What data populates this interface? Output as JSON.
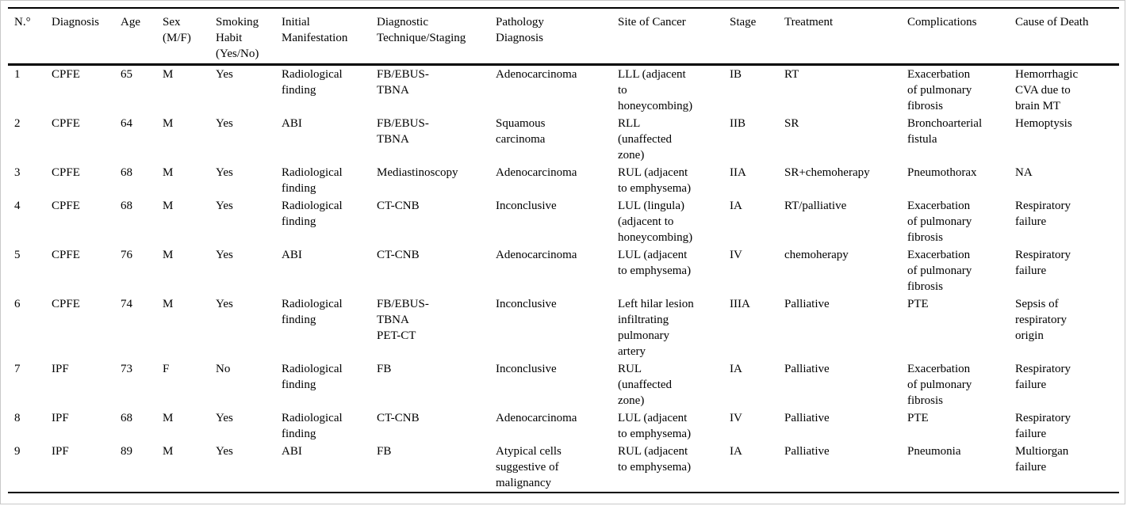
{
  "page": {
    "background_color": "#ffffff",
    "frame_color": "#c8c8c8",
    "rule_color": "#000000",
    "text_color": "#000000"
  },
  "table": {
    "columns": [
      {
        "key": "num",
        "label": "N.°",
        "width": 55
      },
      {
        "key": "diagnosis",
        "label": "Diagnosis",
        "width": 87
      },
      {
        "key": "age",
        "label": "Age",
        "width": 53
      },
      {
        "key": "sex",
        "label": "Sex\n(M/F)",
        "width": 67
      },
      {
        "key": "smoking_habit",
        "label": "Smoking\nHabit\n(Yes/No)",
        "width": 83
      },
      {
        "key": "initial_manifestation",
        "label": "Initial\nManifestation",
        "width": 120
      },
      {
        "key": "diagnostic_technique",
        "label": "Diagnostic\nTechnique/Staging",
        "width": 150
      },
      {
        "key": "pathology_diagnosis",
        "label": "Pathology\nDiagnosis",
        "width": 154
      },
      {
        "key": "site_of_cancer",
        "label": "Site of Cancer",
        "width": 141
      },
      {
        "key": "stage",
        "label": "Stage",
        "width": 69
      },
      {
        "key": "treatment",
        "label": "Treatment",
        "width": 155
      },
      {
        "key": "complications",
        "label": "Complications",
        "width": 136
      },
      {
        "key": "cause_of_death",
        "label": "Cause of Death",
        "width": 131
      }
    ],
    "rows": [
      [
        "1",
        "CPFE",
        "65",
        "M",
        "Yes",
        "Radiological\nfinding",
        "FB/EBUS-\nTBNA",
        "Adenocarcinoma",
        "LLL (adjacent\nto\nhoneycombing)",
        "IB",
        "RT",
        "Exacerbation\nof pulmonary\nfibrosis",
        "Hemorrhagic\nCVA due to\nbrain MT"
      ],
      [
        "2",
        "CPFE",
        "64",
        "M",
        "Yes",
        "ABI",
        "FB/EBUS-\nTBNA",
        "Squamous\ncarcinoma",
        "RLL\n(unaffected\nzone)",
        "IIB",
        "SR",
        "Bronchoarterial\nfistula",
        "Hemoptysis"
      ],
      [
        "3",
        "CPFE",
        "68",
        "M",
        "Yes",
        "Radiological\nfinding",
        "Mediastinoscopy",
        "Adenocarcinoma",
        "RUL (adjacent\nto emphysema)",
        "IIA",
        "SR+chemoherapy",
        "Pneumothorax",
        "NA"
      ],
      [
        "4",
        "CPFE",
        "68",
        "M",
        "Yes",
        "Radiological\nfinding",
        "CT-CNB",
        "Inconclusive",
        "LUL (lingula)\n(adjacent to\nhoneycombing)",
        "IA",
        "RT/palliative",
        "Exacerbation\nof pulmonary\nfibrosis",
        "Respiratory\nfailure"
      ],
      [
        "5",
        "CPFE",
        "76",
        "M",
        "Yes",
        "ABI",
        "CT-CNB",
        "Adenocarcinoma",
        "LUL (adjacent\nto emphysema)",
        "IV",
        "chemoherapy",
        "Exacerbation\nof pulmonary\nfibrosis",
        "Respiratory\nfailure"
      ],
      [
        "6",
        "CPFE",
        "74",
        "M",
        "Yes",
        "Radiological\nfinding",
        "FB/EBUS-\nTBNA\nPET-CT",
        "Inconclusive",
        "Left hilar lesion\ninfiltrating\npulmonary\nartery",
        "IIIA",
        "Palliative",
        "PTE",
        "Sepsis of\nrespiratory\norigin"
      ],
      [
        "7",
        "IPF",
        "73",
        "F",
        "No",
        "Radiological\nfinding",
        "FB",
        "Inconclusive",
        "RUL\n(unaffected\nzone)",
        "IA",
        "Palliative",
        "Exacerbation\nof pulmonary\nfibrosis",
        "Respiratory\nfailure"
      ],
      [
        "8",
        "IPF",
        "68",
        "M",
        "Yes",
        "Radiological\nfinding",
        "CT-CNB",
        "Adenocarcinoma",
        "LUL (adjacent\nto emphysema)",
        "IV",
        "Palliative",
        "PTE",
        "Respiratory\nfailure"
      ],
      [
        "9",
        "IPF",
        "89",
        "M",
        "Yes",
        "ABI",
        "FB",
        "Atypical cells\nsuggestive of\nmalignancy",
        "RUL (adjacent\nto emphysema)",
        "IA",
        "Palliative",
        "Pneumonia",
        "Multiorgan\nfailure"
      ]
    ]
  }
}
